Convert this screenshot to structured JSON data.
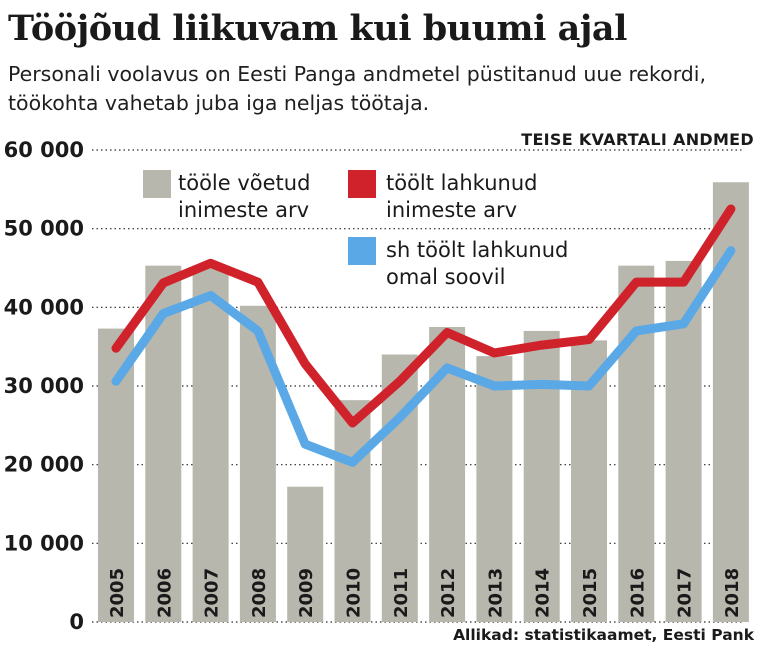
{
  "header": {
    "title": "Tööjõud liikuvam kui buumi ajal",
    "subtitle": "Personali voolavus on Eesti Panga andmetel püstitanud uue rekordi, töökohta vahetab juba iga neljas töötaja.",
    "note": "TEISE KVARTALI ANDMED",
    "source": "Allikad: statistikaamet, Eesti Pank"
  },
  "chart_data": {
    "type": "bar",
    "categories": [
      "2005",
      "2006",
      "2007",
      "2008",
      "2009",
      "2010",
      "2011",
      "2012",
      "2013",
      "2014",
      "2015",
      "2016",
      "2017",
      "2018"
    ],
    "ylim": [
      0,
      60000
    ],
    "yticks": [
      0,
      10000,
      20000,
      30000,
      40000,
      50000,
      60000
    ],
    "ytick_labels": [
      "0",
      "10 000",
      "20 000",
      "30 000",
      "40 000",
      "50 000",
      "60 000"
    ],
    "grid": true,
    "legend_placement": "top",
    "series": [
      {
        "name_lines": [
          "tööle võetud",
          "inimeste arv"
        ],
        "kind": "bar",
        "color": "#b7b7ad",
        "values": [
          37300,
          45300,
          45300,
          40200,
          17200,
          28200,
          34000,
          37500,
          33800,
          37000,
          35800,
          45300,
          45900,
          55900
        ]
      },
      {
        "name_lines": [
          "töölt lahkunud",
          "inimeste arv"
        ],
        "kind": "line",
        "color": "#d0222b",
        "values": [
          34800,
          43100,
          45600,
          43200,
          32800,
          25300,
          30600,
          36800,
          34200,
          35200,
          35900,
          43200,
          43200,
          52500
        ]
      },
      {
        "name_lines": [
          "sh töölt lahkunud",
          "omal soovil"
        ],
        "kind": "line",
        "color": "#5aa9e6",
        "values": [
          30600,
          39200,
          41500,
          37000,
          22600,
          20300,
          26000,
          32300,
          30000,
          30200,
          30000,
          37000,
          37900,
          47200
        ]
      }
    ]
  }
}
